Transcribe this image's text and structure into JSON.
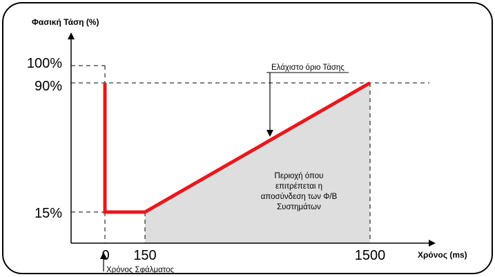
{
  "chart_data": {
    "type": "line",
    "ylabel": "Φασική Τάση (%)",
    "xlabel": "Χρόνος (ms)",
    "y_ticks": [
      {
        "value": 100,
        "label": "100%"
      },
      {
        "value": 90,
        "label": "90%"
      },
      {
        "value": 15,
        "label": "15%"
      }
    ],
    "x_ticks": [
      {
        "value": 0,
        "label": "0"
      },
      {
        "value": 150,
        "label": "150"
      },
      {
        "value": 1500,
        "label": "1500"
      }
    ],
    "xlim": [
      0,
      1500
    ],
    "ylim": [
      0,
      100
    ],
    "series": [
      {
        "color": "#e8181d",
        "points": [
          [
            0,
            90
          ],
          [
            0,
            15
          ],
          [
            150,
            15
          ],
          [
            1500,
            90
          ]
        ]
      }
    ],
    "shaded_region": {
      "label_lines": [
        "Περιοχή όπου",
        "επιτρέπεται η",
        "αποσύνδεση των Φ/Β",
        "Συστημάτων"
      ],
      "fill": "#dedede"
    },
    "annotations": {
      "min_voltage_limit": "Ελάχιστο όριο Τάσης",
      "fault_time": "Χρόνος Σφάλματος"
    }
  }
}
